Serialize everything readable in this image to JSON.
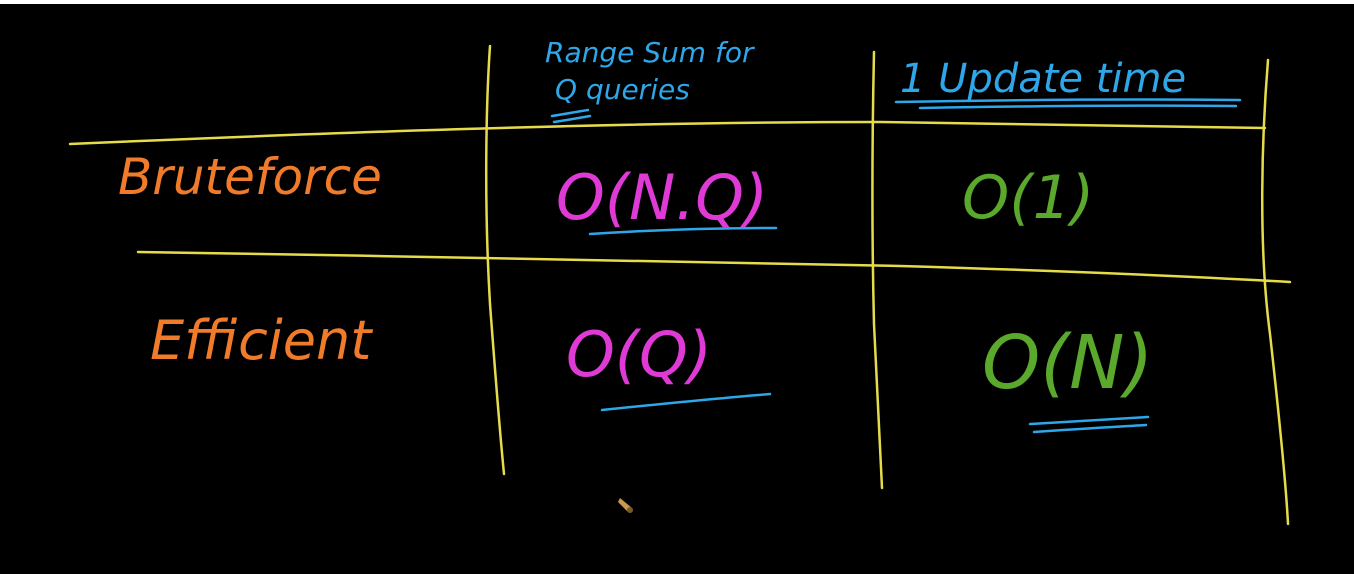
{
  "board": {
    "colors": {
      "background": "#000000",
      "grid": "#e6dc4a",
      "header": "#2ea6e8",
      "row_label": "#f07b2a",
      "query_cell": "#e03ad6",
      "update_cell": "#5aa82c",
      "underline": "#2ea6e8"
    },
    "headers": {
      "range_sum_line1": "Range Sum for",
      "range_sum_line2": "Q queries",
      "update_time": "1 Update time"
    },
    "rows": [
      {
        "label": "Bruteforce",
        "range_sum": "O(N.Q)",
        "update": "O(1)"
      },
      {
        "label": "Efficient",
        "range_sum": "O(Q)",
        "update": "O(N)"
      }
    ]
  }
}
